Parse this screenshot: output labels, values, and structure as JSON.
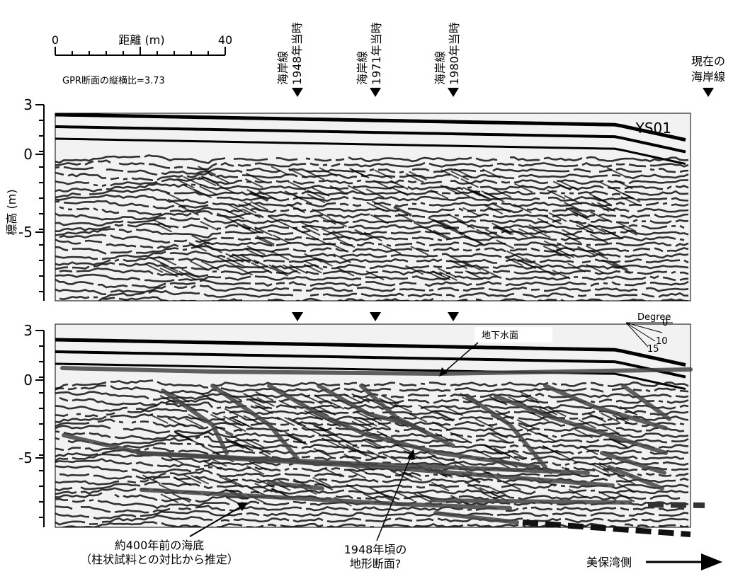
{
  "scale_bar": {
    "label": "距離 (m)",
    "start": "0",
    "end": "40"
  },
  "aspect_note": "GPR断面の縦横比=3.73",
  "shorelines": [
    {
      "place": "海岸線",
      "year": "1948年当時"
    },
    {
      "place": "海岸線",
      "year": "1971年当時"
    },
    {
      "place": "海岸線",
      "year": "1980年当時"
    }
  ],
  "current_shoreline": [
    "現在の",
    "海岸線"
  ],
  "y_axis": {
    "label": "標高 (m)",
    "ticks": [
      "3",
      "0",
      "-5"
    ]
  },
  "profile_name": "YS01",
  "dip_legend": {
    "title": "Degree",
    "labels": [
      "0",
      "10",
      "15"
    ]
  },
  "annotations": {
    "water_table": "地下水面",
    "old_seabed": [
      "約400年前の海底",
      "（柱状試料との対比から推定）"
    ],
    "profile_1948": [
      "1948年頃の",
      "地形断面?"
    ],
    "direction": "美保湾側"
  }
}
